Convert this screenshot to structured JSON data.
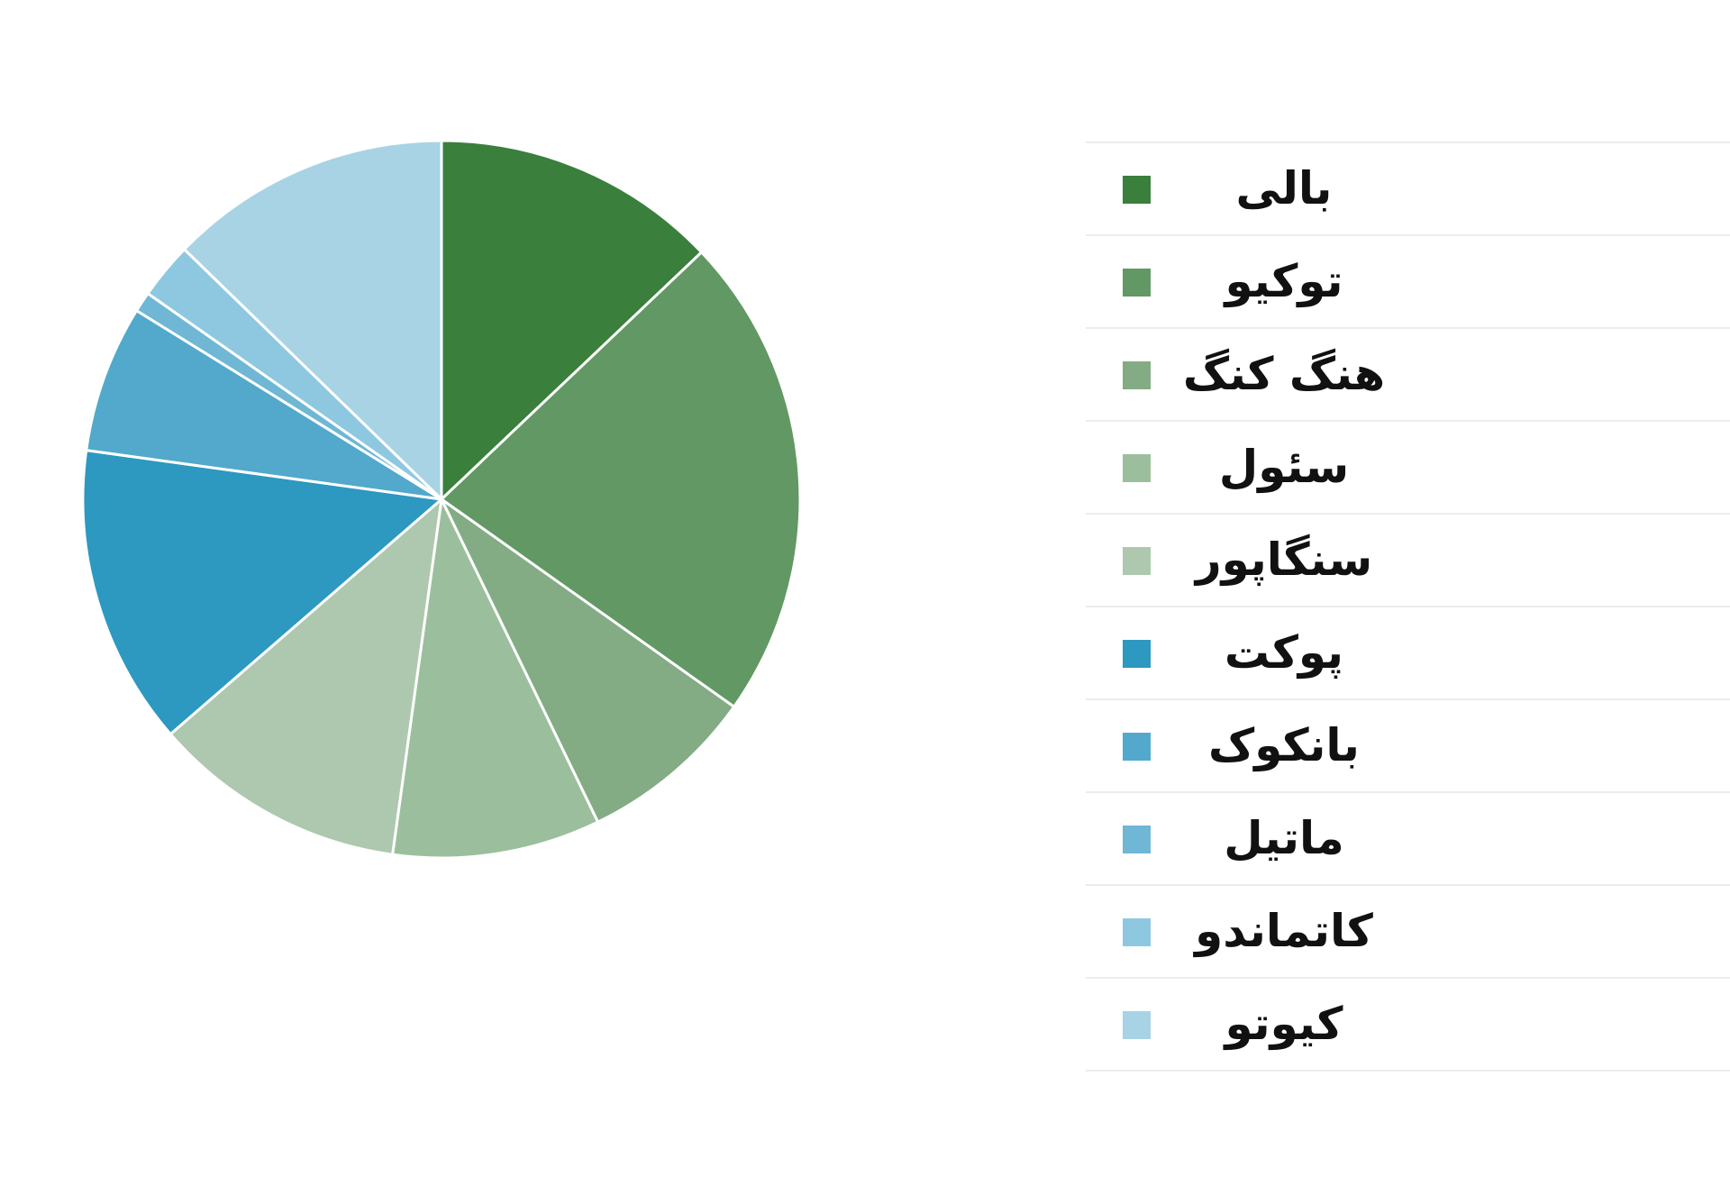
{
  "chart_data": {
    "type": "pie",
    "categories": [
      "بالی",
      "توکیو",
      "هنگ کنگ",
      "سئول",
      "سنگاپور",
      "پوکت",
      "بانکوک",
      "ماتیل",
      "کاتماندو",
      "کیوتو"
    ],
    "values": [
      14.2,
      24.1,
      8.8,
      10.3,
      12.6,
      14.9,
      7.3,
      1.0,
      2.8,
      14.0
    ],
    "colors": [
      "#3a7f3c",
      "#629864",
      "#83ac85",
      "#9bbf9c",
      "#adc8ae",
      "#2d98c0",
      "#52a9cb",
      "#6fb7d4",
      "#8ec8e0",
      "#a8d3e5"
    ],
    "start_angle": "12 o'clock",
    "direction": "clockwise",
    "legend_position": "right",
    "title": ""
  }
}
